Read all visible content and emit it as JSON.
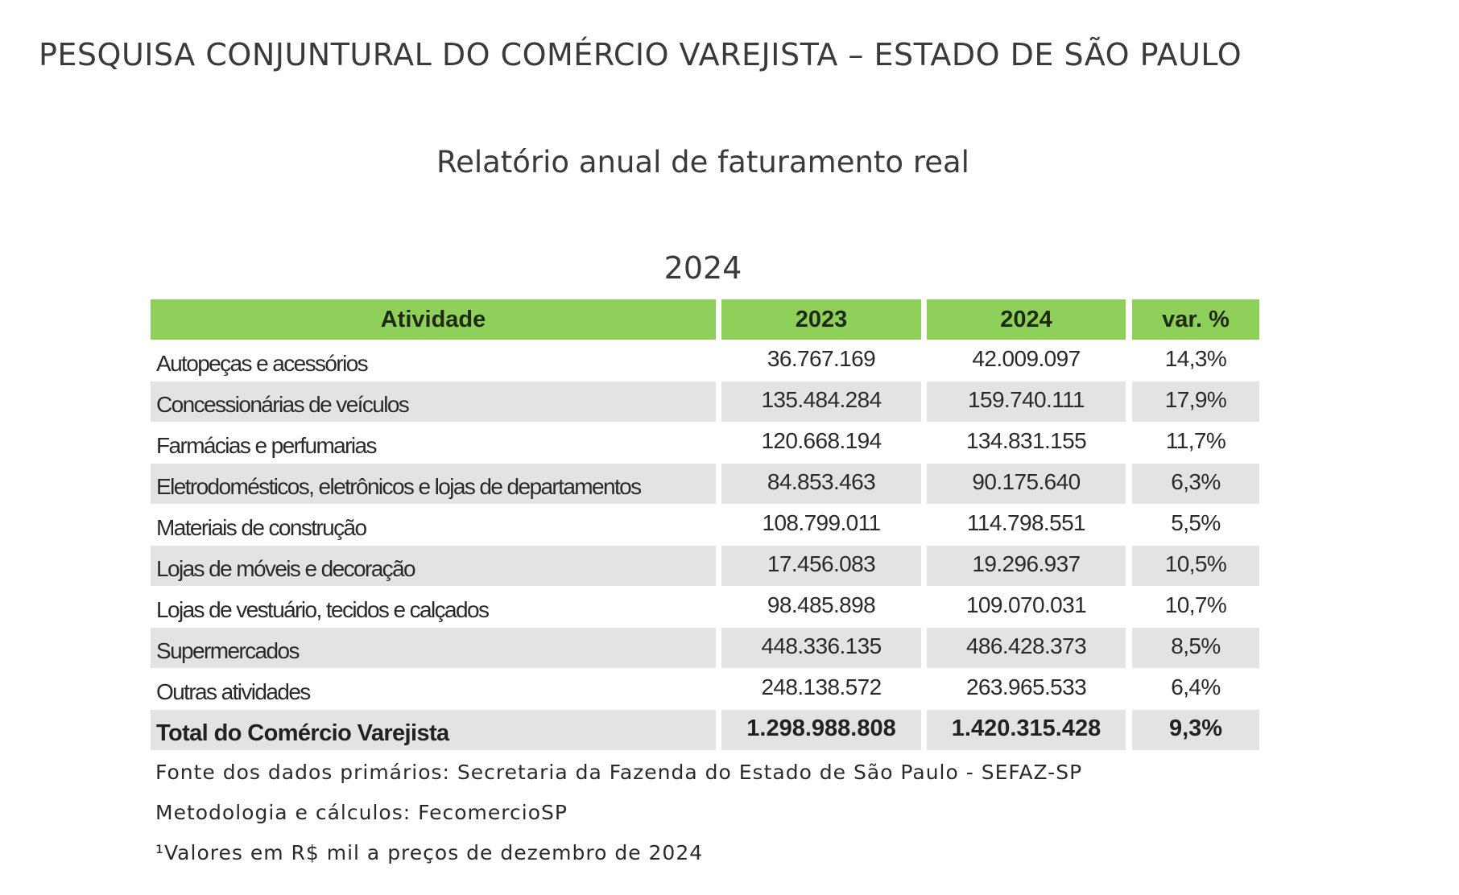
{
  "page": {
    "main_title": "PESQUISA CONJUNTURAL DO COMÉRCIO VAREJISTA – ESTADO DE SÃO PAULO",
    "subtitle": "Relatório anual de faturamento real",
    "year": "2024"
  },
  "table": {
    "headers": [
      "Atividade",
      "2023",
      "2024",
      "var. %"
    ],
    "rows": [
      [
        "Autopeças e acessórios",
        "36.767.169",
        "42.009.097",
        "14,3%"
      ],
      [
        "Concessionárias de veículos",
        "135.484.284",
        "159.740.111",
        "17,9%"
      ],
      [
        "Farmácias e perfumarias",
        "120.668.194",
        "134.831.155",
        "11,7%"
      ],
      [
        "Eletrodomésticos, eletrônicos e lojas de departamentos",
        "84.853.463",
        "90.175.640",
        "6,3%"
      ],
      [
        "Materiais de construção",
        "108.799.011",
        "114.798.551",
        "5,5%"
      ],
      [
        "Lojas de móveis e decoração",
        "17.456.083",
        "19.296.937",
        "10,5%"
      ],
      [
        "Lojas de vestuário, tecidos e calçados",
        "98.485.898",
        "109.070.031",
        "10,7%"
      ],
      [
        "Supermercados",
        "448.336.135",
        "486.428.373",
        "8,5%"
      ],
      [
        "Outras atividades",
        "248.138.572",
        "263.965.533",
        "6,4%"
      ]
    ],
    "total": [
      "Total do Comércio Varejista",
      "1.298.988.808",
      "1.420.315.428",
      "9,3%"
    ]
  },
  "notes": {
    "source": "Fonte dos dados primários: Secretaria da Fazenda do Estado de São Paulo - SEFAZ-SP",
    "methodology": "Metodologia e cálculos: FecomercioSP",
    "footnote": "¹Valores em R$ mil a preços de dezembro de 2024"
  },
  "colors": {
    "header_green": "#8fd05a",
    "row_shade": "#e3e3e3"
  }
}
